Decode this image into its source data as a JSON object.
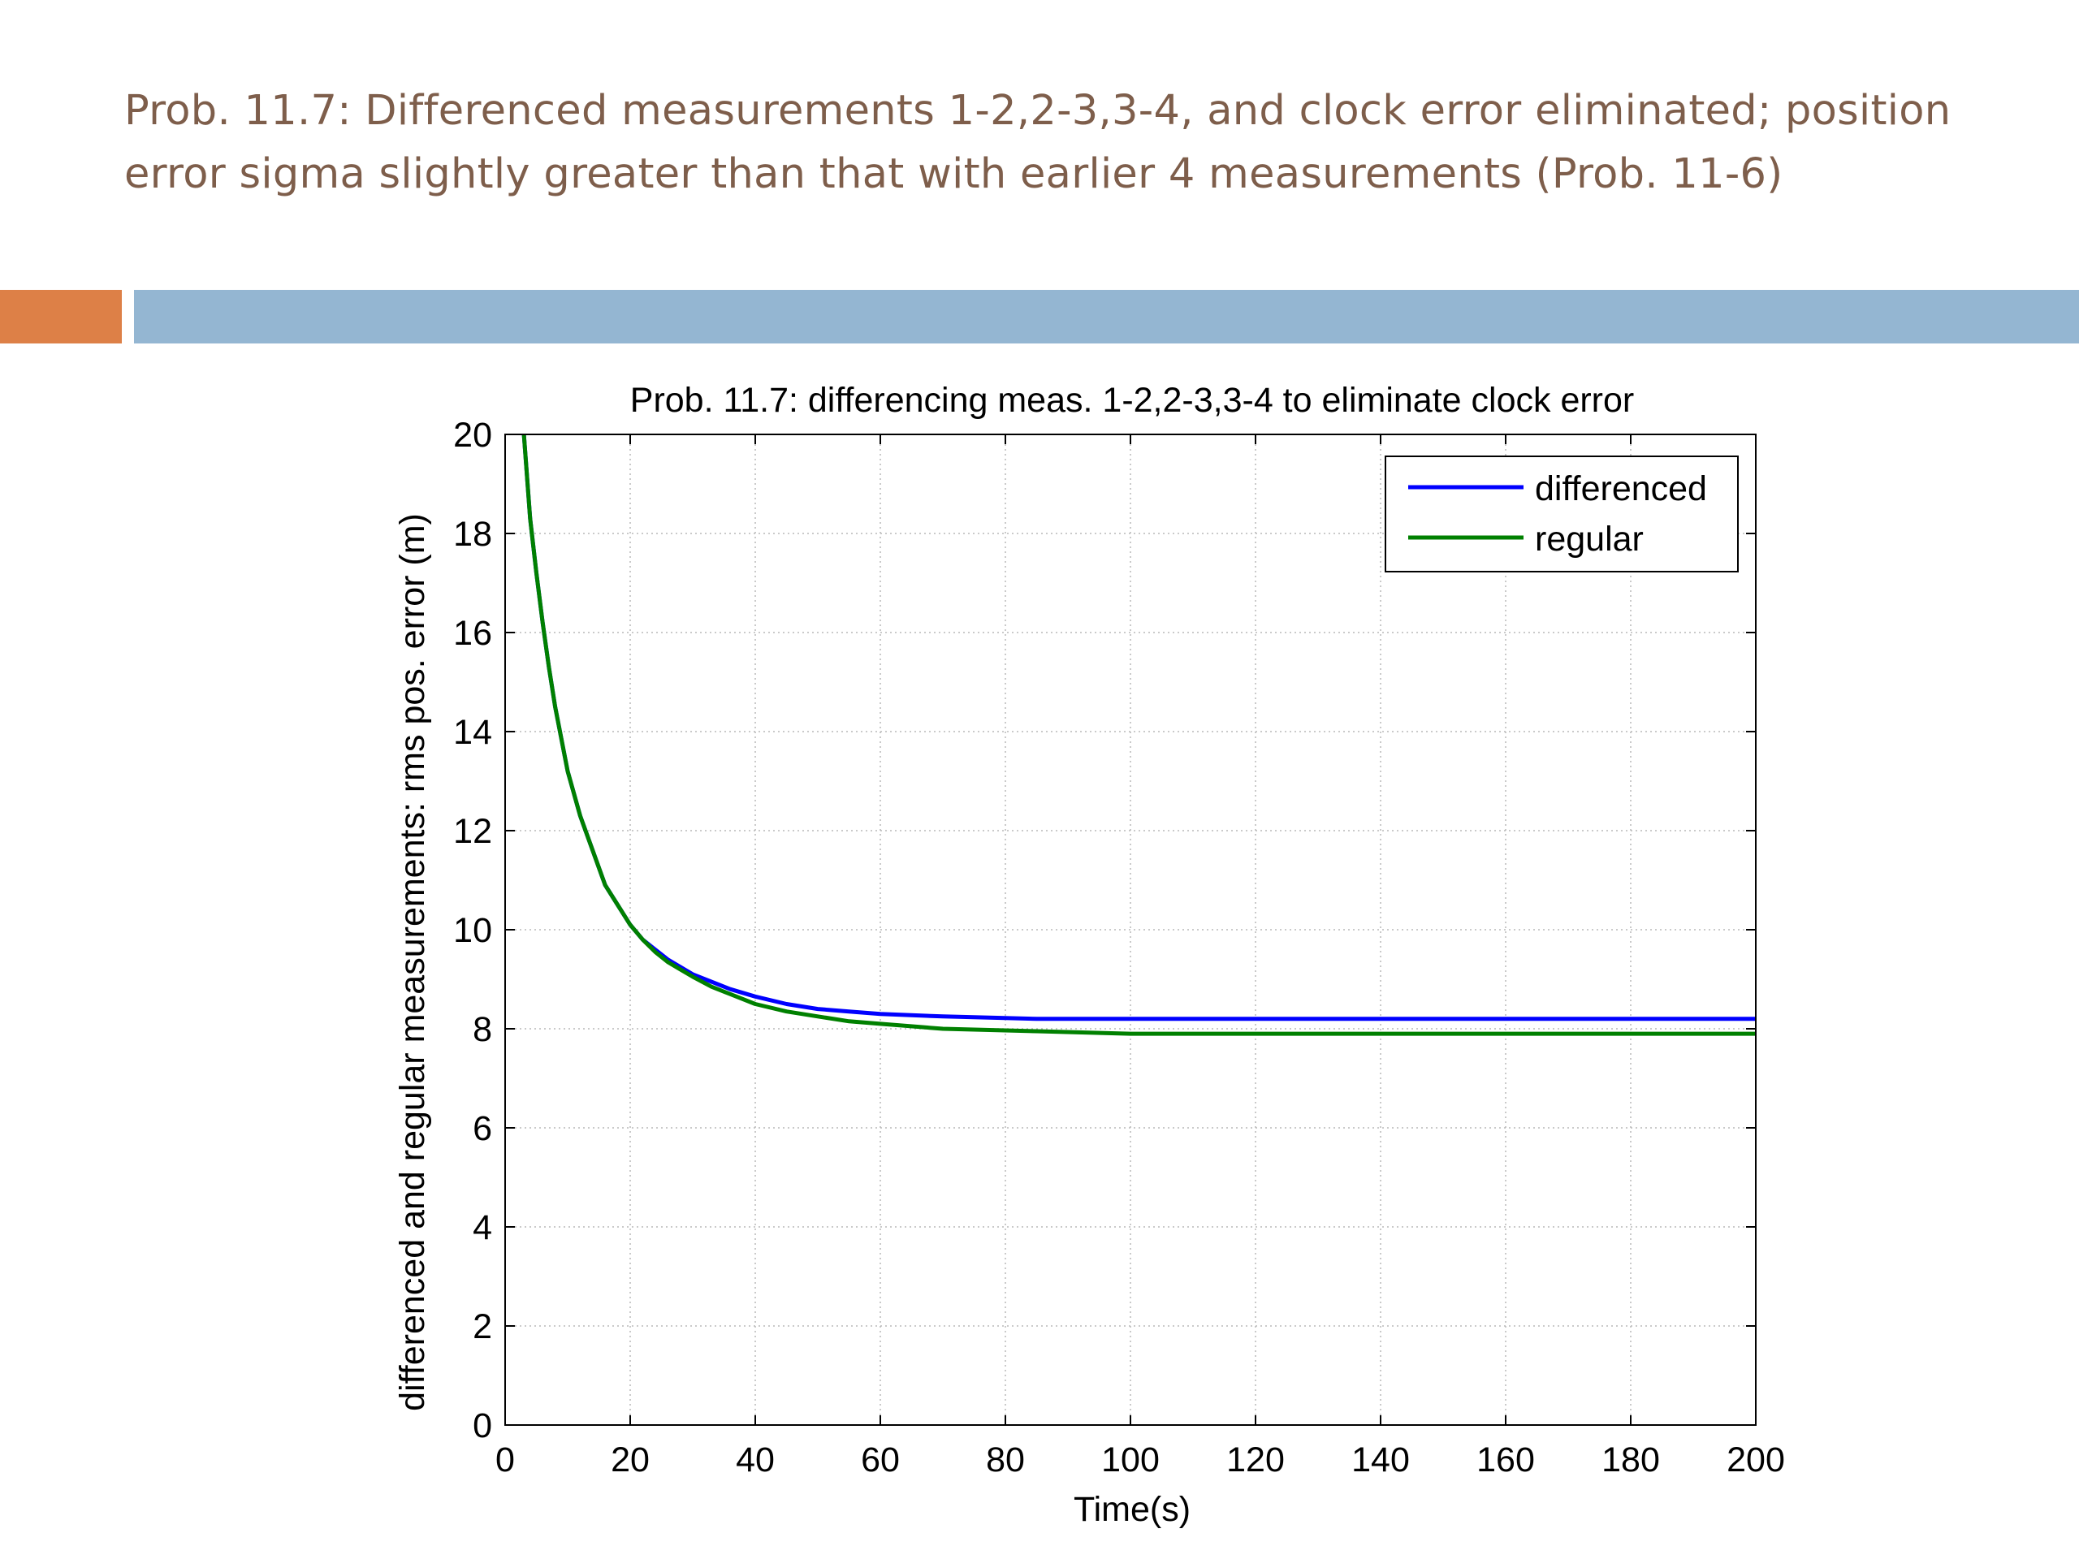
{
  "slide": {
    "title_line1": "Prob. 11.7: Differenced measurements 1-2,2-3,3-4, and clock error eliminated; position",
    "title_line2": "error sigma slightly greater than that with earlier 4 measurements (Prob. 11-6)"
  },
  "colors": {
    "title": "#7e5e4b",
    "accent_orange": "#dd8047",
    "accent_blue": "#94b6d2",
    "series_differenced": "#0000ff",
    "series_regular": "#008000"
  },
  "chart_data": {
    "type": "line",
    "title": "Prob. 11.7: differencing meas. 1-2,2-3,3-4 to eliminate clock error",
    "xlabel": "Time(s)",
    "ylabel": "differenced and regular measurements: rms pos. error (m)",
    "xlim": [
      0,
      200
    ],
    "ylim": [
      0,
      20
    ],
    "xticks": [
      0,
      20,
      40,
      60,
      80,
      100,
      120,
      140,
      160,
      180,
      200
    ],
    "yticks": [
      0,
      2,
      4,
      6,
      8,
      10,
      12,
      14,
      16,
      18,
      20
    ],
    "grid": true,
    "legend_position": "top-right",
    "series": [
      {
        "name": "differenced",
        "color": "#0000ff",
        "x": [
          3,
          4,
          5,
          6,
          7,
          8,
          10,
          12,
          14,
          16,
          18,
          20,
          22,
          24,
          26,
          28,
          30,
          33,
          36,
          40,
          45,
          50,
          55,
          60,
          70,
          85,
          100,
          120,
          150,
          200
        ],
        "y": [
          20.0,
          18.3,
          17.2,
          16.2,
          15.3,
          14.5,
          13.2,
          12.3,
          11.6,
          10.9,
          10.5,
          10.1,
          9.8,
          9.6,
          9.4,
          9.25,
          9.1,
          8.95,
          8.8,
          8.65,
          8.5,
          8.4,
          8.35,
          8.3,
          8.25,
          8.2,
          8.2,
          8.2,
          8.2,
          8.2
        ]
      },
      {
        "name": "regular",
        "color": "#008000",
        "x": [
          3,
          4,
          5,
          6,
          7,
          8,
          10,
          12,
          14,
          16,
          18,
          20,
          22,
          24,
          26,
          28,
          30,
          33,
          36,
          40,
          45,
          50,
          55,
          60,
          70,
          85,
          100,
          120,
          150,
          200
        ],
        "y": [
          20.0,
          18.3,
          17.2,
          16.2,
          15.3,
          14.5,
          13.2,
          12.3,
          11.6,
          10.9,
          10.5,
          10.1,
          9.8,
          9.55,
          9.35,
          9.2,
          9.05,
          8.85,
          8.7,
          8.5,
          8.35,
          8.25,
          8.15,
          8.1,
          8.0,
          7.95,
          7.9,
          7.9,
          7.9,
          7.9
        ]
      }
    ]
  }
}
